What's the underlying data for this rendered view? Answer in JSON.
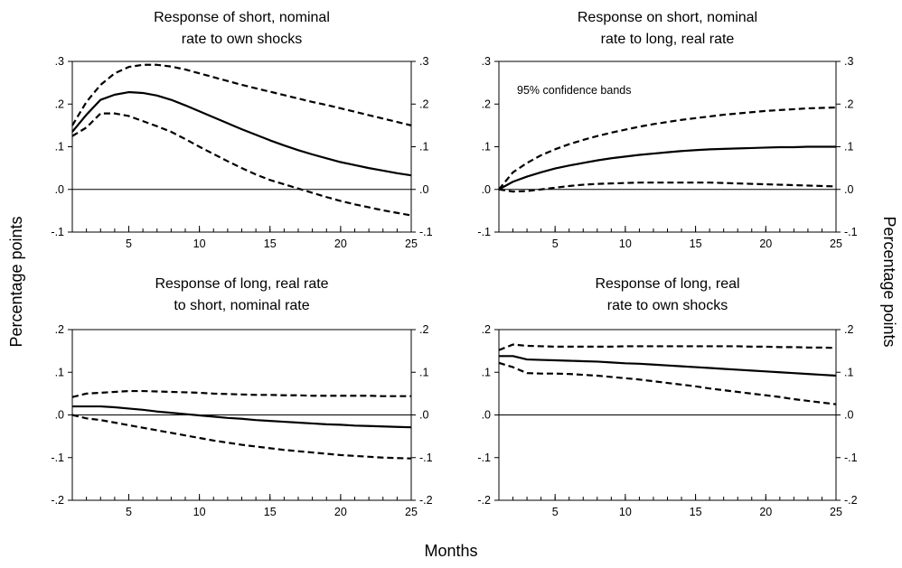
{
  "labels": {
    "ylabel": "Percentage points",
    "xlabel": "Months"
  },
  "chart_data": [
    {
      "type": "line",
      "title_lines": [
        "Response of short, nominal",
        "rate to own shocks"
      ],
      "xlim": [
        1,
        25
      ],
      "ylim": [
        -0.1,
        0.3
      ],
      "x_ticks": [
        5,
        10,
        15,
        20,
        25
      ],
      "x_tick_labels": [
        "5",
        "10",
        "15",
        "20",
        "25"
      ],
      "y_ticks": [
        -0.1,
        0.0,
        0.1,
        0.2,
        0.3
      ],
      "y_tick_labels": [
        "-.1",
        ".0",
        ".1",
        ".2",
        ".3"
      ],
      "zero_line": true,
      "annotation": "",
      "x": [
        1,
        2,
        3,
        4,
        5,
        6,
        7,
        8,
        9,
        10,
        11,
        12,
        13,
        14,
        15,
        16,
        17,
        18,
        19,
        20,
        21,
        22,
        23,
        24,
        25
      ],
      "series": [
        {
          "role": "response",
          "style": "solid",
          "values": [
            0.135,
            0.175,
            0.21,
            0.222,
            0.228,
            0.226,
            0.22,
            0.21,
            0.197,
            0.183,
            0.169,
            0.155,
            0.141,
            0.128,
            0.115,
            0.103,
            0.092,
            0.082,
            0.073,
            0.064,
            0.057,
            0.05,
            0.044,
            0.038,
            0.033
          ]
        },
        {
          "role": "upper_band",
          "style": "dashed",
          "values": [
            0.15,
            0.205,
            0.245,
            0.272,
            0.287,
            0.292,
            0.292,
            0.288,
            0.281,
            0.272,
            0.263,
            0.254,
            0.245,
            0.237,
            0.229,
            0.221,
            0.213,
            0.205,
            0.198,
            0.19,
            0.182,
            0.174,
            0.166,
            0.158,
            0.15
          ]
        },
        {
          "role": "lower_band",
          "style": "dashed",
          "values": [
            0.125,
            0.145,
            0.178,
            0.178,
            0.172,
            0.16,
            0.148,
            0.135,
            0.118,
            0.1,
            0.083,
            0.066,
            0.05,
            0.035,
            0.022,
            0.012,
            0.002,
            -0.008,
            -0.018,
            -0.027,
            -0.035,
            -0.042,
            -0.049,
            -0.055,
            -0.061
          ]
        }
      ]
    },
    {
      "type": "line",
      "title_lines": [
        "Response on short, nominal",
        "rate to long, real rate"
      ],
      "xlim": [
        1,
        25
      ],
      "ylim": [
        -0.1,
        0.3
      ],
      "x_ticks": [
        5,
        10,
        15,
        20,
        25
      ],
      "x_tick_labels": [
        "5",
        "10",
        "15",
        "20",
        "25"
      ],
      "y_ticks": [
        -0.1,
        0.0,
        0.1,
        0.2,
        0.3
      ],
      "y_tick_labels": [
        "-.1",
        ".0",
        ".1",
        ".2",
        ".3"
      ],
      "zero_line": true,
      "annotation": "95% confidence bands",
      "x": [
        1,
        2,
        3,
        4,
        5,
        6,
        7,
        8,
        9,
        10,
        11,
        12,
        13,
        14,
        15,
        16,
        17,
        18,
        19,
        20,
        21,
        22,
        23,
        24,
        25
      ],
      "series": [
        {
          "role": "response",
          "style": "solid",
          "values": [
            0.0,
            0.018,
            0.03,
            0.04,
            0.049,
            0.056,
            0.062,
            0.068,
            0.073,
            0.077,
            0.081,
            0.084,
            0.087,
            0.09,
            0.092,
            0.094,
            0.095,
            0.096,
            0.097,
            0.098,
            0.099,
            0.099,
            0.1,
            0.1,
            0.1
          ]
        },
        {
          "role": "upper_band",
          "style": "dashed",
          "values": [
            0.0,
            0.04,
            0.062,
            0.08,
            0.094,
            0.106,
            0.116,
            0.125,
            0.133,
            0.14,
            0.147,
            0.153,
            0.158,
            0.163,
            0.167,
            0.171,
            0.175,
            0.178,
            0.181,
            0.184,
            0.186,
            0.188,
            0.19,
            0.191,
            0.192
          ]
        },
        {
          "role": "lower_band",
          "style": "dashed",
          "values": [
            0.0,
            -0.005,
            -0.004,
            0.0,
            0.004,
            0.008,
            0.011,
            0.013,
            0.014,
            0.015,
            0.016,
            0.016,
            0.016,
            0.016,
            0.016,
            0.016,
            0.015,
            0.014,
            0.013,
            0.012,
            0.011,
            0.01,
            0.009,
            0.008,
            0.007
          ]
        }
      ]
    },
    {
      "type": "line",
      "title_lines": [
        "Response of long, real rate",
        "to short, nominal rate"
      ],
      "xlim": [
        1,
        25
      ],
      "ylim": [
        -0.2,
        0.2
      ],
      "x_ticks": [
        5,
        10,
        15,
        20,
        25
      ],
      "x_tick_labels": [
        "5",
        "10",
        "15",
        "20",
        "25"
      ],
      "y_ticks": [
        -0.2,
        -0.1,
        0.0,
        0.1,
        0.2
      ],
      "y_tick_labels": [
        "-.2",
        "-.1",
        ".0",
        ".1",
        ".2"
      ],
      "zero_line": true,
      "annotation": "",
      "x": [
        1,
        2,
        3,
        4,
        5,
        6,
        7,
        8,
        9,
        10,
        11,
        12,
        13,
        14,
        15,
        16,
        17,
        18,
        19,
        20,
        21,
        22,
        23,
        24,
        25
      ],
      "series": [
        {
          "role": "response",
          "style": "solid",
          "values": [
            0.02,
            0.02,
            0.02,
            0.018,
            0.015,
            0.012,
            0.008,
            0.005,
            0.002,
            -0.001,
            -0.004,
            -0.007,
            -0.009,
            -0.012,
            -0.014,
            -0.016,
            -0.018,
            -0.02,
            -0.022,
            -0.023,
            -0.025,
            -0.026,
            -0.027,
            -0.028,
            -0.029
          ]
        },
        {
          "role": "upper_band",
          "style": "dashed",
          "values": [
            0.042,
            0.05,
            0.052,
            0.054,
            0.056,
            0.056,
            0.055,
            0.054,
            0.053,
            0.052,
            0.05,
            0.049,
            0.048,
            0.047,
            0.047,
            0.046,
            0.046,
            0.045,
            0.045,
            0.045,
            0.045,
            0.045,
            0.044,
            0.044,
            0.044
          ]
        },
        {
          "role": "lower_band",
          "style": "dashed",
          "values": [
            0.0,
            -0.008,
            -0.012,
            -0.018,
            -0.024,
            -0.03,
            -0.036,
            -0.042,
            -0.048,
            -0.054,
            -0.06,
            -0.065,
            -0.07,
            -0.074,
            -0.078,
            -0.082,
            -0.085,
            -0.088,
            -0.091,
            -0.094,
            -0.096,
            -0.098,
            -0.1,
            -0.101,
            -0.102
          ]
        }
      ]
    },
    {
      "type": "line",
      "title_lines": [
        "Response of long, real",
        "rate to own shocks"
      ],
      "xlim": [
        1,
        25
      ],
      "ylim": [
        -0.2,
        0.2
      ],
      "x_ticks": [
        5,
        10,
        15,
        20,
        25
      ],
      "x_tick_labels": [
        "5",
        "10",
        "15",
        "20",
        "25"
      ],
      "y_ticks": [
        -0.2,
        -0.1,
        0.0,
        0.1,
        0.2
      ],
      "y_tick_labels": [
        "-.2",
        "-.1",
        ".0",
        ".1",
        ".2"
      ],
      "zero_line": true,
      "annotation": "",
      "x": [
        1,
        2,
        3,
        4,
        5,
        6,
        7,
        8,
        9,
        10,
        11,
        12,
        13,
        14,
        15,
        16,
        17,
        18,
        19,
        20,
        21,
        22,
        23,
        24,
        25
      ],
      "series": [
        {
          "role": "response",
          "style": "solid",
          "values": [
            0.138,
            0.138,
            0.13,
            0.129,
            0.128,
            0.127,
            0.126,
            0.125,
            0.123,
            0.121,
            0.12,
            0.118,
            0.116,
            0.114,
            0.112,
            0.11,
            0.108,
            0.106,
            0.104,
            0.102,
            0.1,
            0.098,
            0.096,
            0.094,
            0.092
          ]
        },
        {
          "role": "upper_band",
          "style": "dashed",
          "values": [
            0.152,
            0.165,
            0.162,
            0.161,
            0.16,
            0.16,
            0.16,
            0.16,
            0.16,
            0.161,
            0.161,
            0.161,
            0.161,
            0.161,
            0.161,
            0.161,
            0.161,
            0.161,
            0.16,
            0.16,
            0.159,
            0.159,
            0.158,
            0.158,
            0.157
          ]
        },
        {
          "role": "lower_band",
          "style": "dashed",
          "values": [
            0.122,
            0.112,
            0.098,
            0.097,
            0.097,
            0.096,
            0.094,
            0.092,
            0.089,
            0.086,
            0.083,
            0.079,
            0.075,
            0.071,
            0.067,
            0.062,
            0.058,
            0.054,
            0.05,
            0.046,
            0.042,
            0.037,
            0.033,
            0.029,
            0.025
          ]
        }
      ]
    }
  ]
}
